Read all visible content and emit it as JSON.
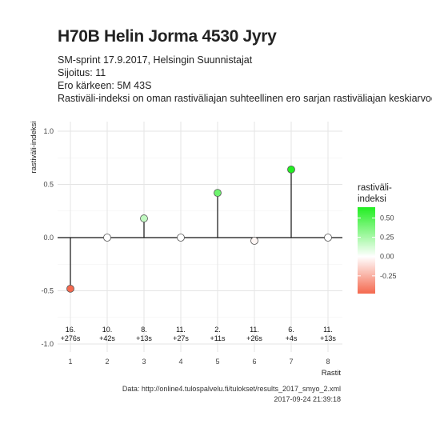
{
  "title": "H70B Helin Jorma 4530 Jyry",
  "subtitle_lines": [
    "SM-sprint 17.9.2017, Helsingin Suunnistajat",
    "Sijoitus: 11",
    "Ero kärkeen: 5M 43S",
    "Rastiväli-indeksi on oman rastiväliajan suhteellinen ero sarjan rastiväliajan keskiarvoon"
  ],
  "caption_lines": [
    "Data: http://online4.tulospalvelu.fi/tulokset/results_2017_smyo_2.xml",
    "2017-09-24 21:39:18"
  ],
  "colors": {
    "low": "#f4694f",
    "mid": "#ffffff",
    "high": "#22ee22",
    "grid": "#e4e4e4",
    "stem": "#111111"
  },
  "chart_data": {
    "type": "lollipop",
    "xlabel": "Rastit",
    "ylabel": "rastiväli-indeksi",
    "x_ticks": [
      "1",
      "2",
      "3",
      "4",
      "5",
      "6",
      "7",
      "8"
    ],
    "y_ticks": [
      "-1.0",
      "-0.5",
      "0.0",
      "0.5",
      "1.0"
    ],
    "ylim": [
      -1.0,
      1.0
    ],
    "xlim": [
      1,
      8
    ],
    "grid": true,
    "x": [
      1,
      2,
      3,
      4,
      5,
      6,
      7,
      8
    ],
    "values": [
      -0.48,
      0.0,
      0.18,
      0.0,
      0.42,
      -0.03,
      0.64,
      0.0
    ],
    "point_labels": [
      [
        "16.",
        "+276s"
      ],
      [
        "10.",
        "+42s"
      ],
      [
        "8.",
        "+13s"
      ],
      [
        "11.",
        "+27s"
      ],
      [
        "2.",
        "+11s"
      ],
      [
        "11.",
        "+26s"
      ],
      [
        "6.",
        "+4s"
      ],
      [
        "11.",
        "+13s"
      ]
    ],
    "legend": {
      "title_lines": [
        "rastiväli-",
        "indeksi"
      ],
      "ticks": [
        "0.50",
        "0.25",
        "0.00",
        "-0.25"
      ],
      "tick_values": [
        0.5,
        0.25,
        0.0,
        -0.25
      ],
      "range": [
        -0.48,
        0.64
      ],
      "placement": "right"
    }
  }
}
